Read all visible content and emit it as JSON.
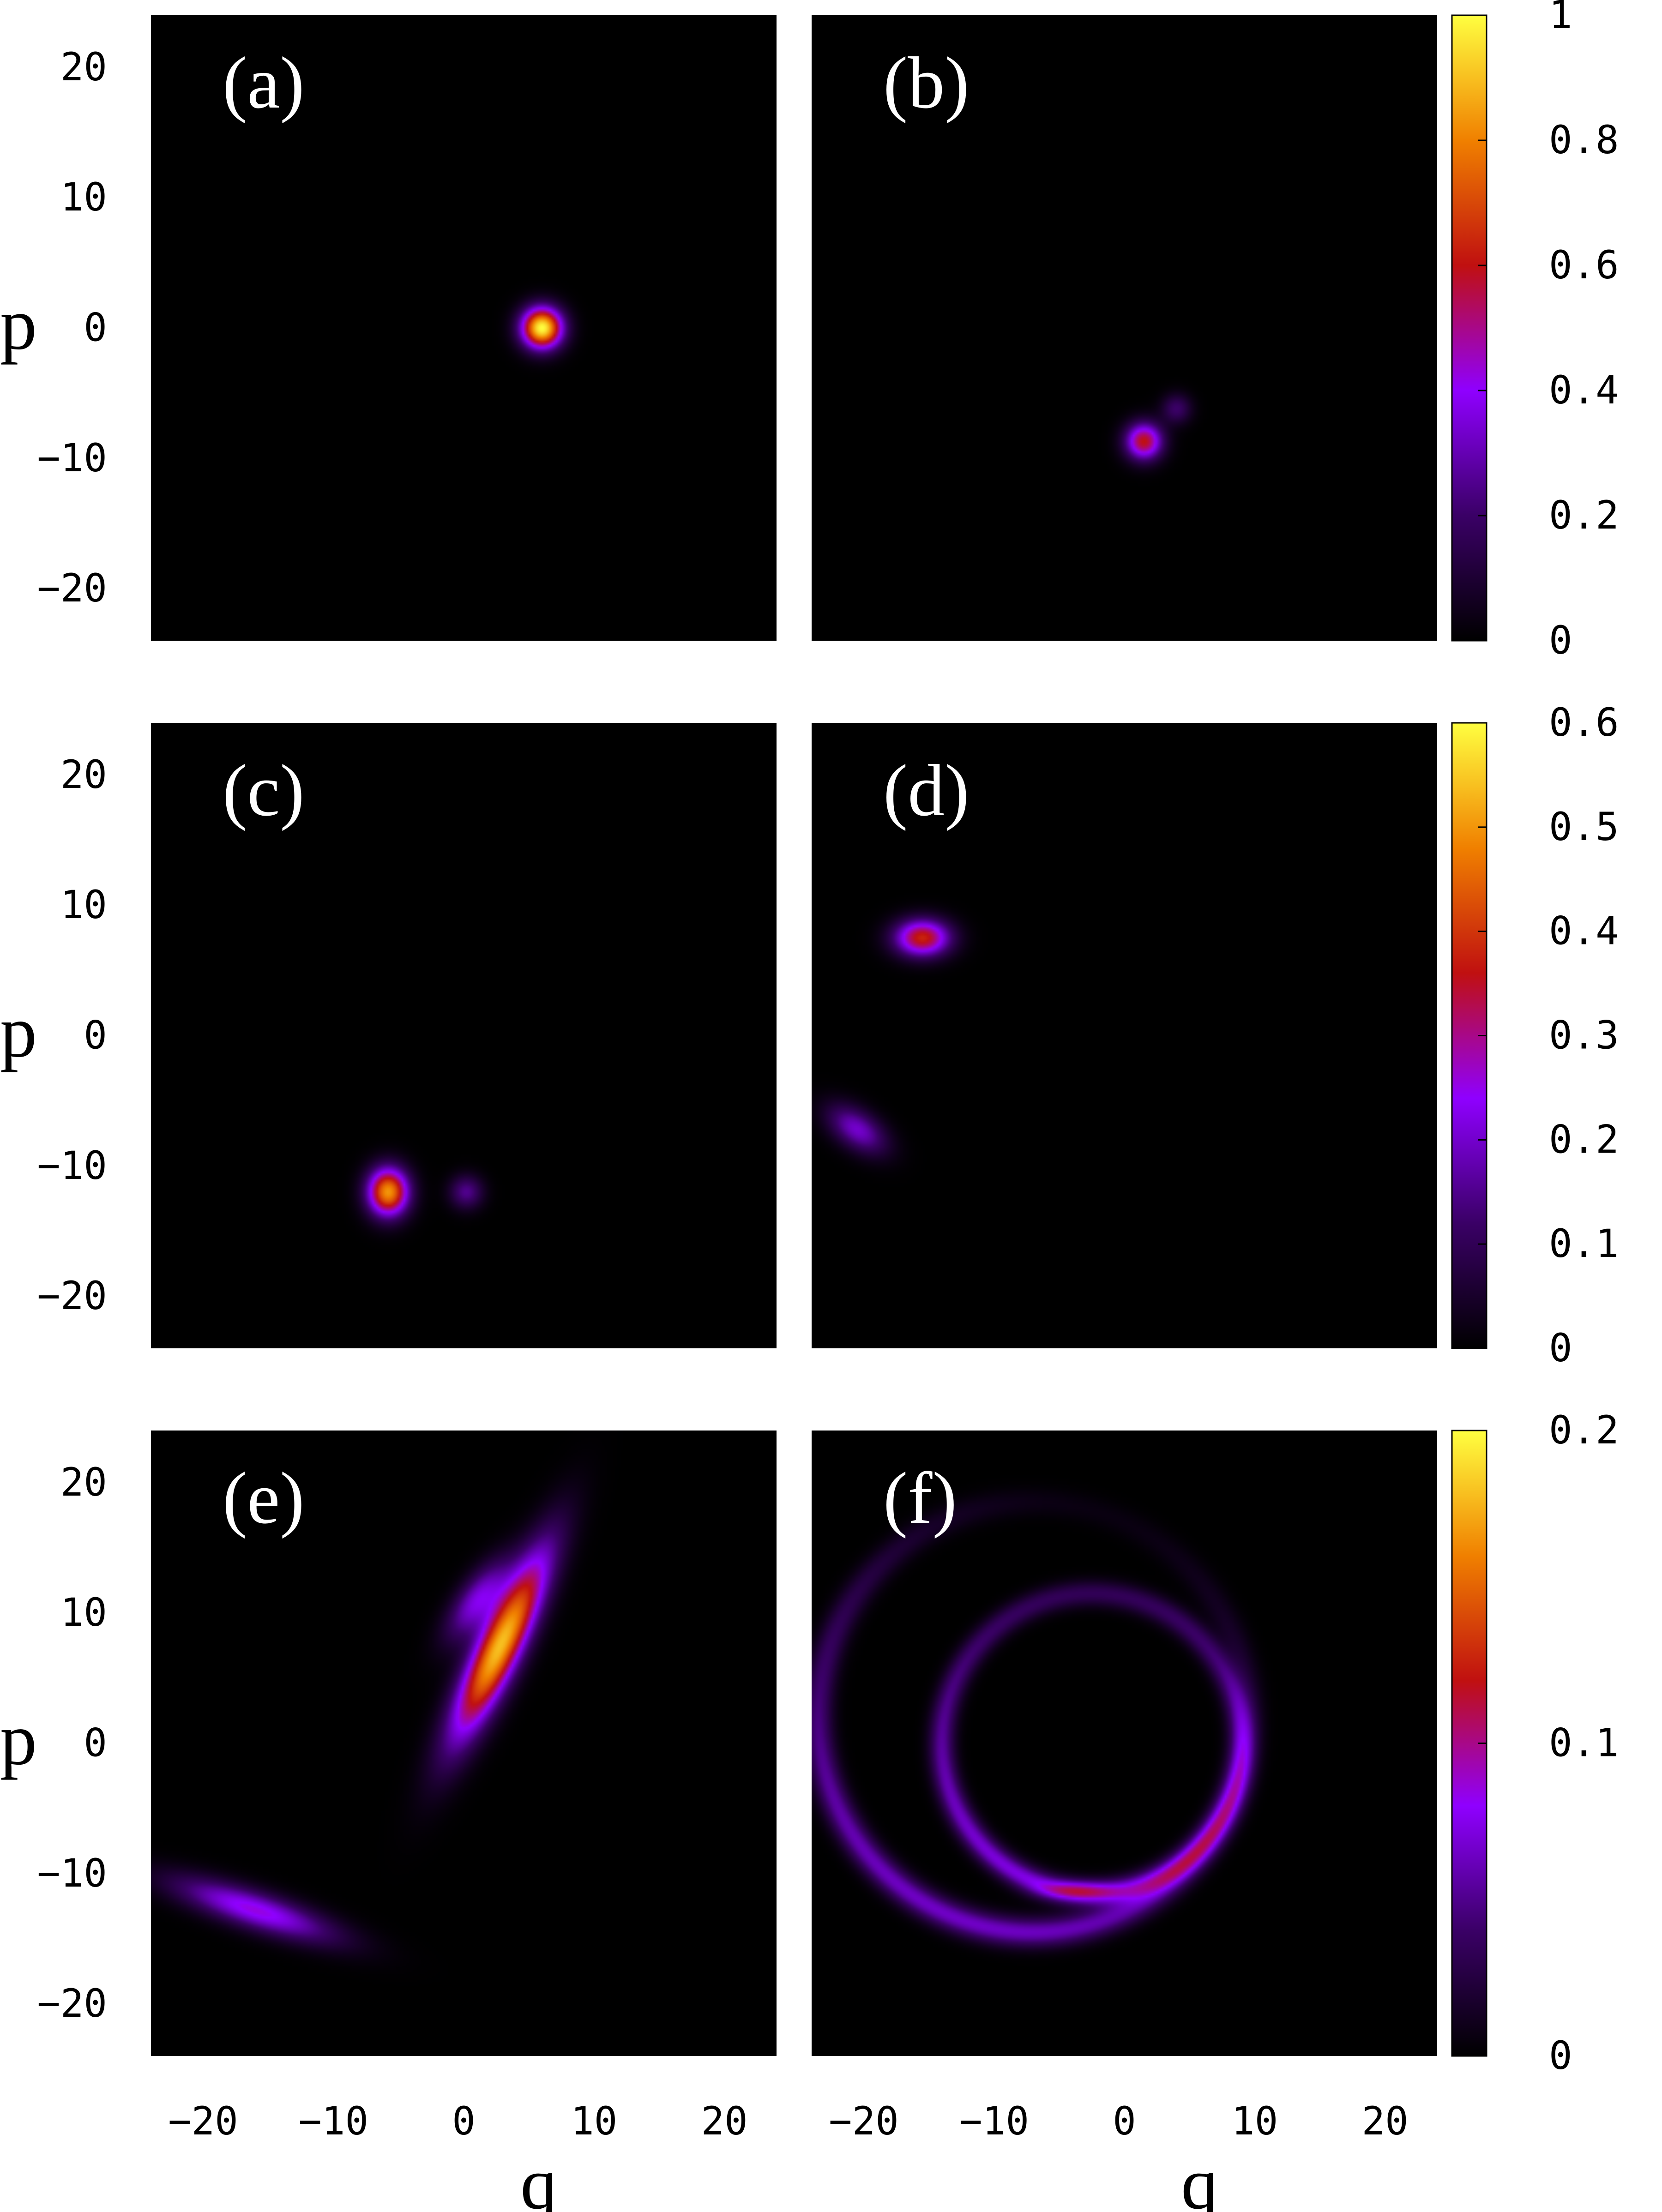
{
  "chart_data": {
    "type": "heatmap",
    "x_range": [
      -24,
      24
    ],
    "y_range": [
      -24,
      24
    ],
    "x_ticks": [
      "−20",
      "−10",
      "0",
      "10",
      "20"
    ],
    "y_ticks": [
      "20",
      "10",
      "0",
      "−10",
      "−20"
    ],
    "xlabel": "q",
    "ylabel": "p",
    "colormap": [
      "#000000",
      "#3a0066",
      "#8f00ff",
      "#c01010",
      "#f08000",
      "#ffff40"
    ],
    "colorbars": [
      {
        "row": 0,
        "max": 1,
        "ticks": [
          "1",
          "0.8",
          "0.6",
          "0.4",
          "0.2",
          "0"
        ],
        "tick_values": [
          1,
          0.8,
          0.6,
          0.4,
          0.2,
          0
        ]
      },
      {
        "row": 1,
        "max": 0.6,
        "ticks": [
          "0.6",
          "0.5",
          "0.4",
          "0.3",
          "0.2",
          "0.1",
          "0"
        ],
        "tick_values": [
          0.6,
          0.5,
          0.4,
          0.3,
          0.2,
          0.1,
          0
        ]
      },
      {
        "row": 2,
        "max": 0.2,
        "ticks": [
          "0.2",
          "0.1",
          "0"
        ],
        "tick_values": [
          0.2,
          0.1,
          0
        ]
      }
    ],
    "panels": [
      {
        "label": "(a)",
        "row": 0,
        "col": 0,
        "features": [
          {
            "kind": "gaussian",
            "q": 6,
            "p": 0,
            "sq": 1.1,
            "sp": 1.1,
            "angle": 0,
            "amp": 1.0
          }
        ]
      },
      {
        "label": "(b)",
        "row": 0,
        "col": 1,
        "features": [
          {
            "kind": "gaussian",
            "q": 1.5,
            "p": -8.7,
            "sq": 1.0,
            "sp": 1.0,
            "angle": 0,
            "amp": 0.6
          },
          {
            "kind": "gaussian",
            "q": 4,
            "p": -6.2,
            "sq": 0.8,
            "sp": 0.8,
            "angle": 0,
            "amp": 0.2
          }
        ]
      },
      {
        "label": "(c)",
        "row": 1,
        "col": 0,
        "features": [
          {
            "kind": "gaussian",
            "q": -5.8,
            "p": -12,
            "sq": 1.1,
            "sp": 1.3,
            "angle": 0,
            "amp": 0.5
          },
          {
            "kind": "gaussian",
            "q": 0.2,
            "p": -12,
            "sq": 0.9,
            "sp": 0.9,
            "angle": 0,
            "amp": 0.15
          }
        ]
      },
      {
        "label": "(d)",
        "row": 1,
        "col": 1,
        "features": [
          {
            "kind": "gaussian",
            "q": -15.5,
            "p": 7.5,
            "sq": 1.5,
            "sp": 1.0,
            "angle": 0,
            "amp": 0.38
          },
          {
            "kind": "gaussian",
            "q": -20.5,
            "p": -7.2,
            "sq": 1.8,
            "sp": 1.0,
            "angle": -35,
            "amp": 0.2
          }
        ]
      },
      {
        "label": "(e)",
        "row": 2,
        "col": 0,
        "features": [
          {
            "kind": "gaussian",
            "q": 2.8,
            "p": 7.5,
            "sq": 1.2,
            "sp": 5.5,
            "angle": -25,
            "amp": 0.18
          },
          {
            "kind": "gaussian",
            "q": 1.0,
            "p": 11.0,
            "sq": 1.0,
            "sp": 2.5,
            "angle": -35,
            "amp": 0.07
          },
          {
            "kind": "gaussian",
            "q": -16,
            "p": -12.8,
            "sq": 4.5,
            "sp": 1.0,
            "angle": -18,
            "amp": 0.085
          }
        ]
      },
      {
        "label": "(f)",
        "row": 2,
        "col": 1,
        "features": [
          {
            "kind": "ring",
            "q": -2.5,
            "p": 0,
            "r": 11.5,
            "w": 0.7,
            "amp": 0.075,
            "peak_deg": -90,
            "falloff": 0.55
          },
          {
            "kind": "ring",
            "q": -7,
            "p": 2,
            "r": 16.5,
            "w": 0.8,
            "amp": 0.065,
            "peak_deg": -110,
            "falloff": 0.9
          },
          {
            "kind": "gaussian",
            "q": -3.5,
            "p": -11.3,
            "sq": 2.0,
            "sp": 0.5,
            "angle": 0,
            "amp": 0.04
          }
        ]
      }
    ]
  }
}
